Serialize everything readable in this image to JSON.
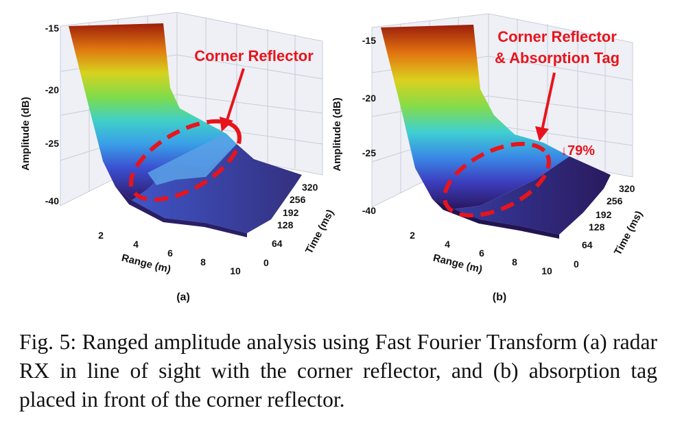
{
  "figure": {
    "panels": [
      {
        "label": "(a)",
        "y_ticks": [
          "-15",
          "-20",
          "-25",
          "-40"
        ],
        "y_axis_label": "Amplitude (dB)",
        "range_ticks": [
          "2",
          "4",
          "6",
          "8",
          "10"
        ],
        "range_label": "Range (m)",
        "time_ticks": [
          "0",
          "64",
          "128",
          "192",
          "256",
          "320"
        ],
        "time_label": "Time (ms)",
        "annotation": "Corner Reflector"
      },
      {
        "label": "(b)",
        "y_ticks": [
          "-15",
          "-20",
          "-25",
          "-40"
        ],
        "y_axis_label": "Amplitude (dB)",
        "range_ticks": [
          "2",
          "4",
          "6",
          "8",
          "10"
        ],
        "range_label": "Range (m)",
        "time_ticks": [
          "0",
          "64",
          "128",
          "192",
          "256",
          "320"
        ],
        "time_label": "Time (ms)",
        "annotation_line1": "Corner Reflector",
        "annotation_line2": "& Absorption Tag",
        "reduction": "↓79%"
      }
    ],
    "caption": "Fig. 5: Ranged amplitude analysis using Fast Fourier Transform (a) radar RX in line of sight with the corner reflector, and (b) absorption tag placed in front of the corner reflector.",
    "colors": {
      "annotation": "#e8141b"
    }
  }
}
